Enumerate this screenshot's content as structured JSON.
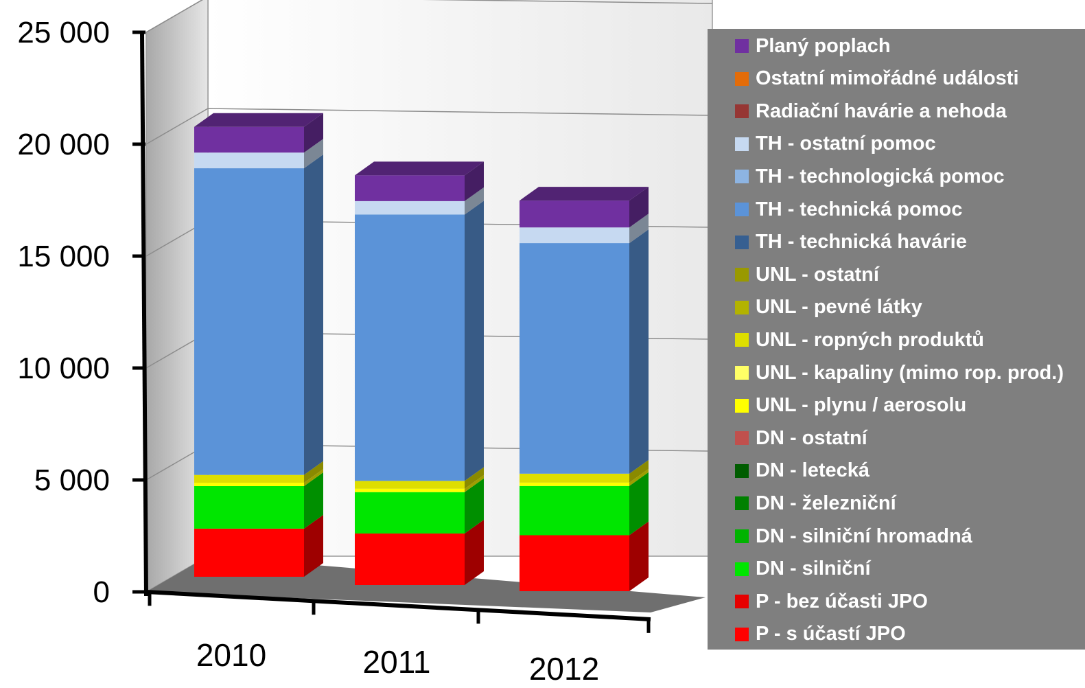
{
  "chart_data": {
    "type": "bar",
    "stacked": true,
    "three_d": true,
    "categories": [
      "2010",
      "2011",
      "2012"
    ],
    "ylim": [
      0,
      25000
    ],
    "yticks": [
      "0",
      "5 000",
      "10 000",
      "15 000",
      "20 000",
      "25 000"
    ],
    "ytick_values": [
      0,
      5000,
      10000,
      15000,
      20000,
      25000
    ],
    "grid": true,
    "legend_position": "right",
    "series": [
      {
        "name": "P - s účastí JPO",
        "color": "#ff0000",
        "values": [
          2150,
          2300,
          2500
        ]
      },
      {
        "name": "P - bez účasti JPO",
        "color": "#e60000",
        "values": [
          0,
          0,
          0
        ]
      },
      {
        "name": "DN - silniční",
        "color": "#00e600",
        "values": [
          1900,
          1850,
          2200
        ]
      },
      {
        "name": "DN - silniční hromadná",
        "color": "#00b300",
        "values": [
          0,
          0,
          0
        ]
      },
      {
        "name": "DN - železniční",
        "color": "#008000",
        "values": [
          0,
          0,
          0
        ]
      },
      {
        "name": "DN - letecká",
        "color": "#005c00",
        "values": [
          0,
          0,
          0
        ]
      },
      {
        "name": "DN - ostatní",
        "color": "#c0504d",
        "values": [
          0,
          0,
          0
        ]
      },
      {
        "name": "UNL - plynu / aerosolu",
        "color": "#ffff00",
        "values": [
          150,
          150,
          150
        ]
      },
      {
        "name": "UNL - kapaliny (mimo rop. prod.)",
        "color": "#ffff66",
        "values": [
          0,
          0,
          0
        ]
      },
      {
        "name": "UNL - ropných produktů",
        "color": "#dede00",
        "values": [
          350,
          350,
          400
        ]
      },
      {
        "name": "UNL - pevné látky",
        "color": "#b3b300",
        "values": [
          0,
          0,
          0
        ]
      },
      {
        "name": "UNL - ostatní",
        "color": "#999900",
        "values": [
          0,
          0,
          0
        ]
      },
      {
        "name": "TH - technická havárie",
        "color": "#365f91",
        "values": [
          0,
          0,
          0
        ]
      },
      {
        "name": "TH - technická pomoc",
        "color": "#5b93d8",
        "values": [
          13700,
          11900,
          10300
        ]
      },
      {
        "name": "TH - technologická pomoc",
        "color": "#8db4e2",
        "values": [
          0,
          0,
          0
        ]
      },
      {
        "name": "TH - ostatní pomoc",
        "color": "#c6d9f1",
        "values": [
          700,
          600,
          700
        ]
      },
      {
        "name": "Radiační havárie a nehoda",
        "color": "#963634",
        "values": [
          0,
          0,
          0
        ]
      },
      {
        "name": "Ostatní mimořádné události",
        "color": "#e36c09",
        "values": [
          0,
          0,
          0
        ]
      },
      {
        "name": "Planý poplach",
        "color": "#7030a0",
        "values": [
          1150,
          1150,
          1200
        ]
      }
    ]
  }
}
